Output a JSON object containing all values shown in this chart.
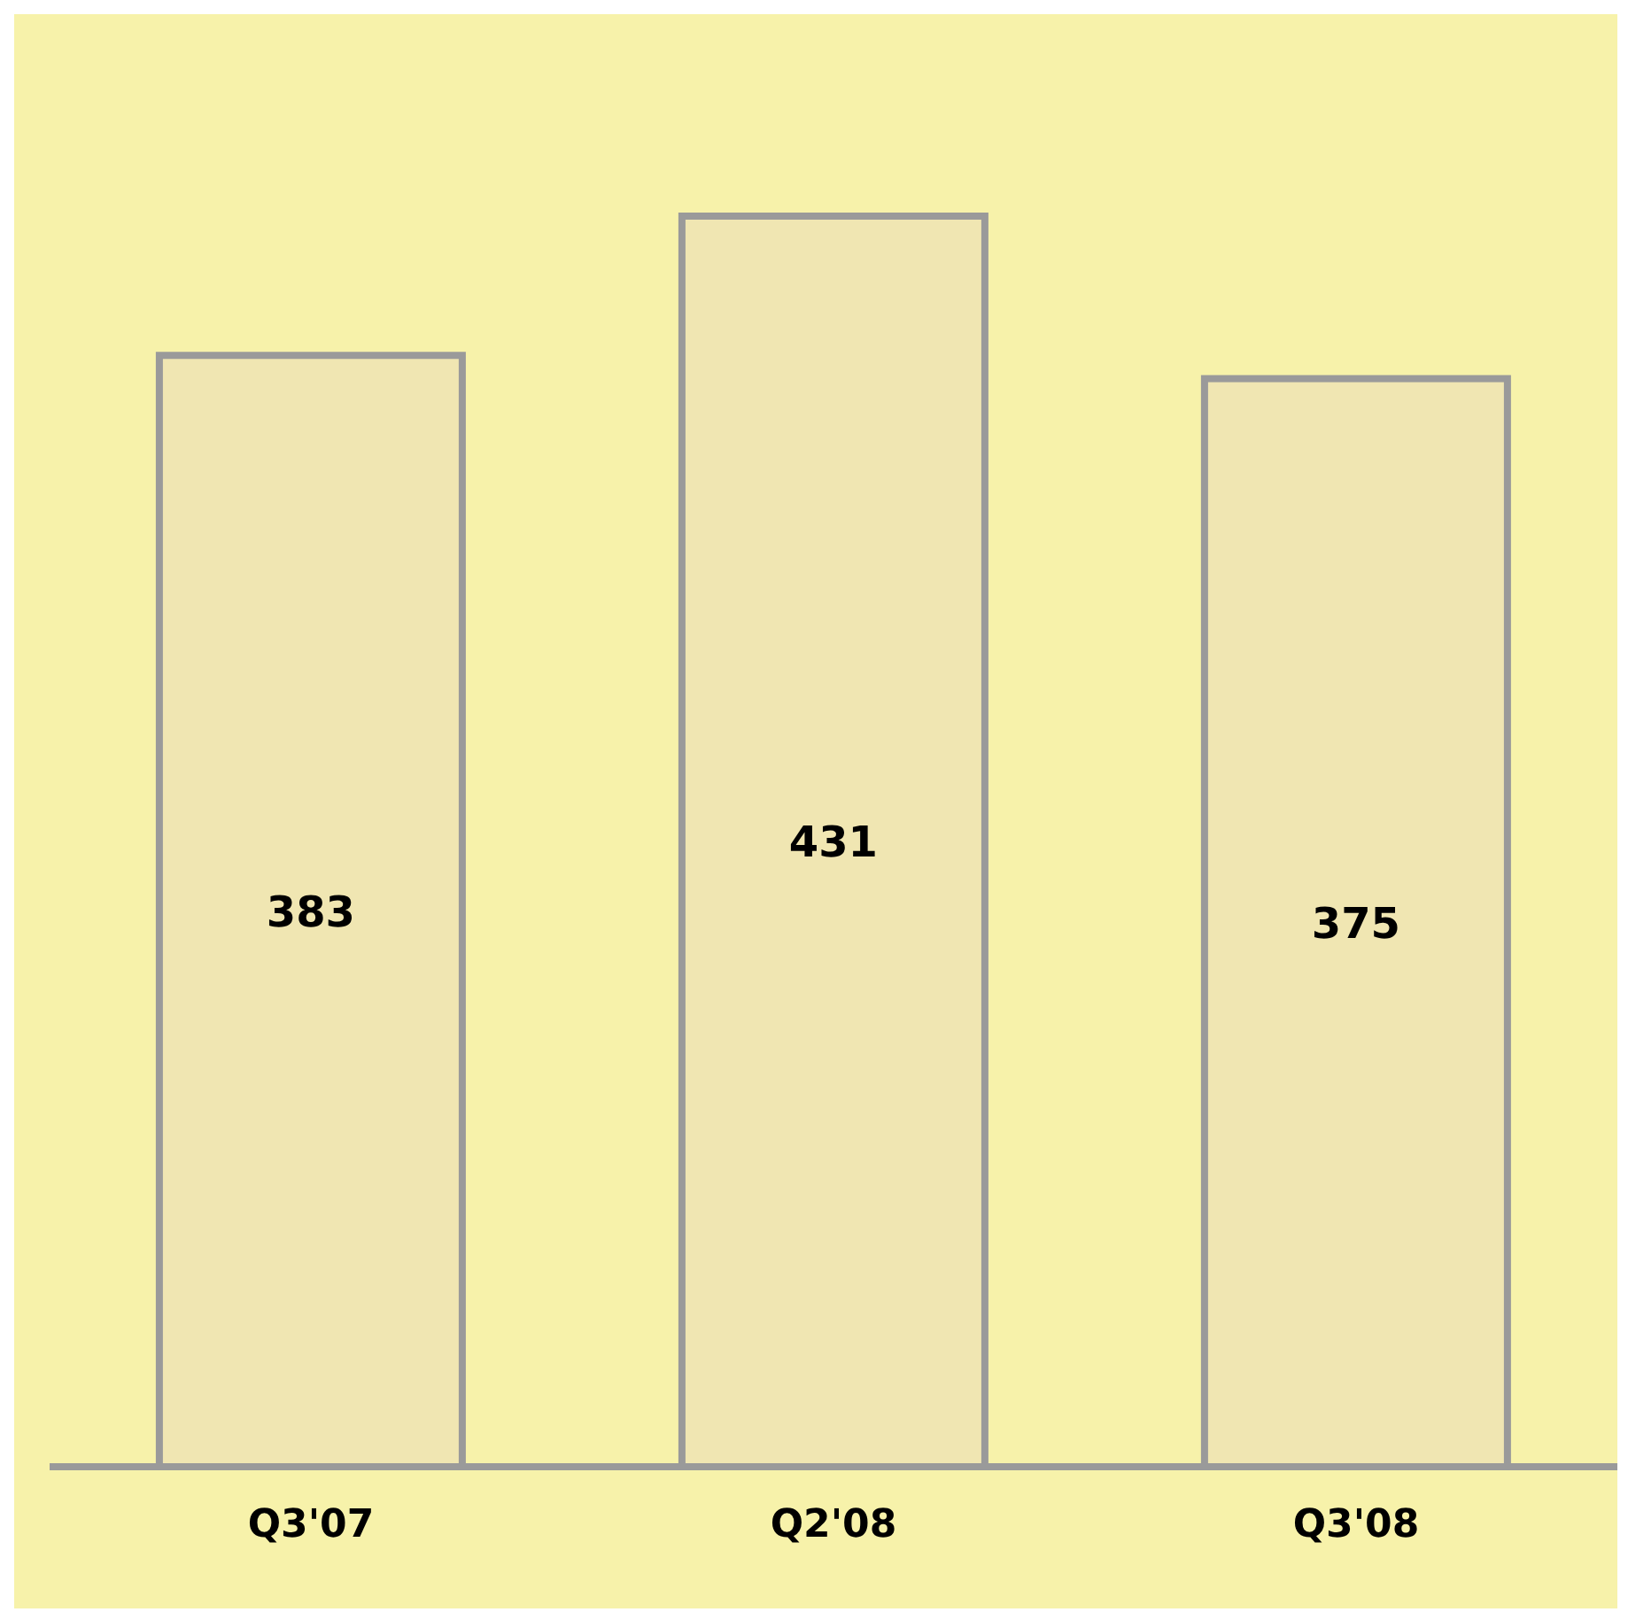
{
  "chart_data": {
    "type": "bar",
    "categories": [
      "Q3'07",
      "Q2'08",
      "Q3'08"
    ],
    "values": [
      383,
      431,
      375
    ],
    "color": "#f0e6b2",
    "data_labels": true
  }
}
